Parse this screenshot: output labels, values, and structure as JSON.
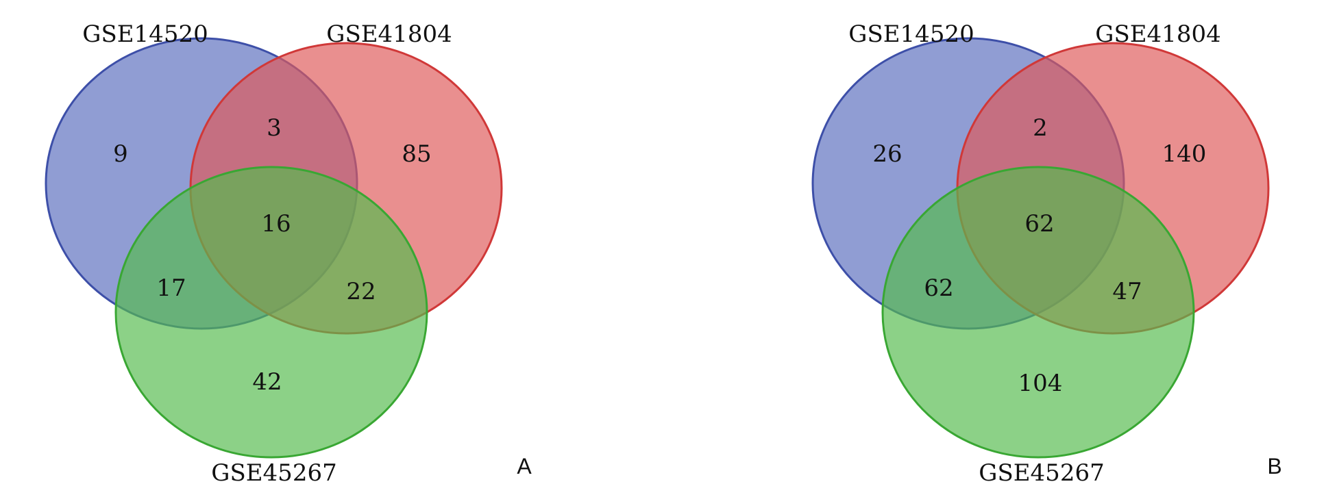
{
  "figure": {
    "panels": [
      {
        "letter": "A",
        "sets": [
          {
            "name": "GSE14520",
            "color": "#5a6ebd"
          },
          {
            "name": "GSE41804",
            "color": "#de5b5b"
          },
          {
            "name": "GSE45267",
            "color": "#53b64c"
          }
        ],
        "regions": {
          "only_gse14520": "9",
          "gse14520_gse41804": "3",
          "only_gse41804": "85",
          "all_three": "16",
          "gse14520_gse45267": "17",
          "gse41804_gse45267": "22",
          "only_gse45267": "42"
        }
      },
      {
        "letter": "B",
        "sets": [
          {
            "name": "GSE14520",
            "color": "#5a6ebd"
          },
          {
            "name": "GSE41804",
            "color": "#de5b5b"
          },
          {
            "name": "GSE45267",
            "color": "#53b64c"
          }
        ],
        "regions": {
          "only_gse14520": "26",
          "gse14520_gse41804": "2",
          "only_gse41804": "140",
          "all_three": "62",
          "gse14520_gse45267": "62",
          "gse41804_gse45267": "47",
          "only_gse45267": "104"
        }
      }
    ]
  }
}
